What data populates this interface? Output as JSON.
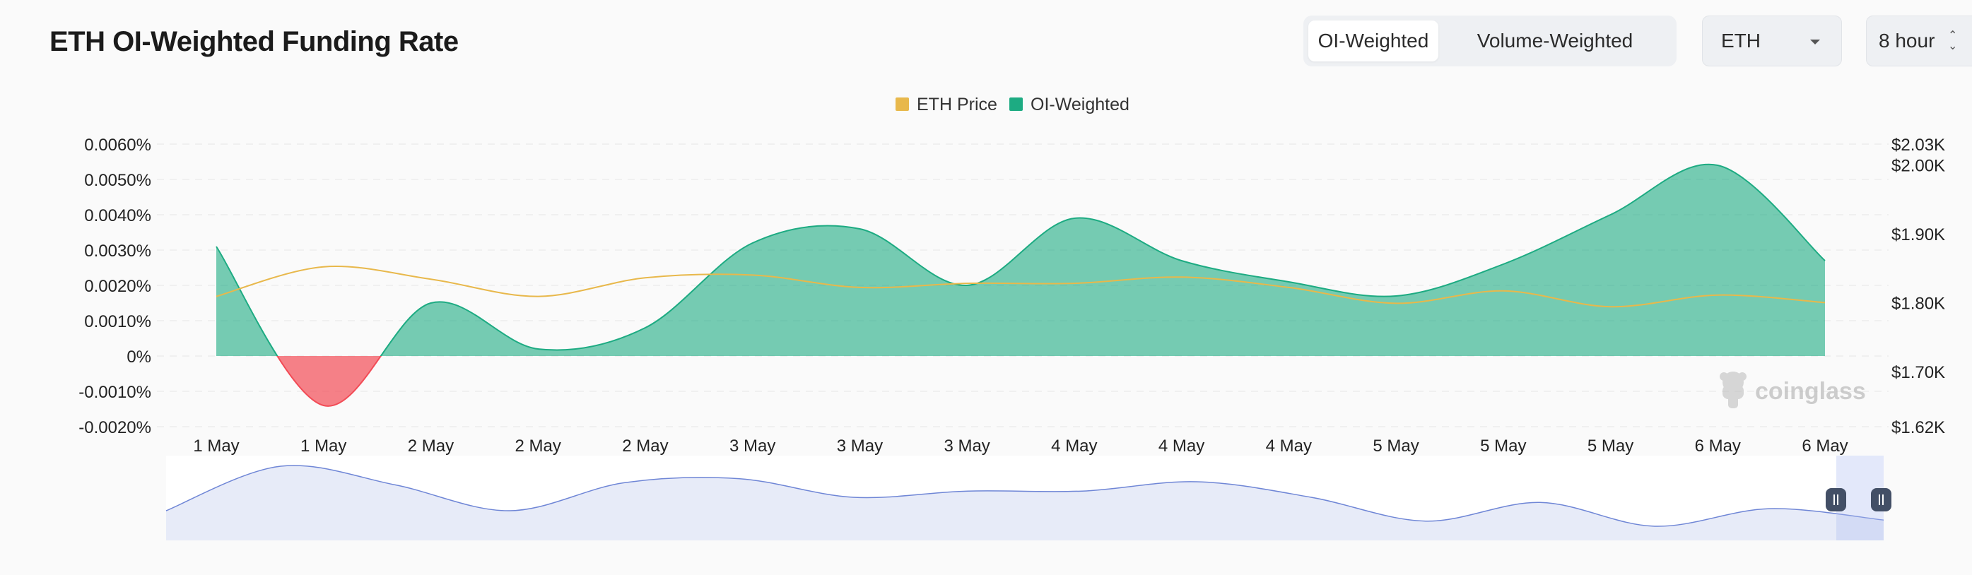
{
  "header": {
    "title": "ETH OI-Weighted Funding Rate",
    "toggle": [
      "OI-Weighted",
      "Volume-Weighted"
    ],
    "coin_select": "ETH",
    "interval_select": "8 hour"
  },
  "watermark": "coinglass",
  "colors": {
    "positive": "#1dab82",
    "negative": "#f24b56",
    "price": "#e8b84b",
    "navigator": "#c9d3f0"
  },
  "chart_data": {
    "type": "area",
    "legend": [
      {
        "name": "ETH Price",
        "color": "#e8b84b"
      },
      {
        "name": "OI-Weighted",
        "color": "#1dab82"
      }
    ],
    "legend_position": "top-center",
    "x_tick_labels": [
      "1 May",
      "1 May",
      "2 May",
      "2 May",
      "2 May",
      "3 May",
      "3 May",
      "3 May",
      "4 May",
      "4 May",
      "4 May",
      "5 May",
      "5 May",
      "5 May",
      "6 May",
      "6 May"
    ],
    "y_left": {
      "tick_labels": [
        "0.0060%",
        "0.0050%",
        "0.0040%",
        "0.0030%",
        "0.0020%",
        "0.0010%",
        "0%",
        "-0.0010%",
        "-0.0020%"
      ],
      "tick_values": [
        0.006,
        0.005,
        0.004,
        0.003,
        0.002,
        0.001,
        0,
        -0.001,
        -0.002
      ],
      "range": [
        -0.002,
        0.006
      ],
      "unit": "%"
    },
    "y_right": {
      "tick_labels": [
        "$2.03K",
        "$2.00K",
        "$1.90K",
        "$1.80K",
        "$1.70K",
        "$1.62K"
      ],
      "tick_values": [
        2030,
        2000,
        1900,
        1800,
        1700,
        1620
      ],
      "range": [
        1620,
        2030
      ]
    },
    "grid": true,
    "series": [
      {
        "name": "OI-Weighted",
        "values": [
          0.0031,
          -0.0014,
          0.0015,
          0.0002,
          0.0008,
          0.0032,
          0.0036,
          0.002,
          0.0039,
          0.0027,
          0.0021,
          0.0017,
          0.0026,
          0.004,
          0.0054,
          0.0027
        ]
      },
      {
        "name": "ETH Price",
        "values": [
          1809,
          1852,
          1834,
          1809,
          1836,
          1840,
          1822,
          1828,
          1828,
          1837,
          1822,
          1799,
          1817,
          1794,
          1811,
          1800
        ]
      }
    ]
  }
}
